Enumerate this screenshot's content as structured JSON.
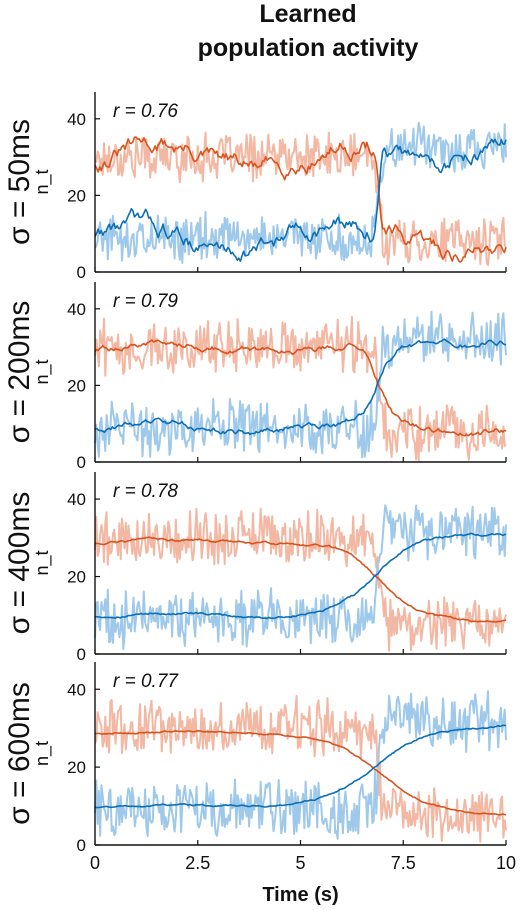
{
  "title_lines": [
    "Learned",
    "population activity"
  ],
  "colors": {
    "series_a": "#d9531e",
    "series_a_raw": "#f3b8a3",
    "series_b": "#0b6fb7",
    "series_b_raw": "#9fc9ea",
    "axis": "#111111"
  },
  "chart_data": [
    {
      "type": "line",
      "row_label": "σ = 50ms",
      "ylabel": "n_t",
      "annotation": "r = 0.76",
      "xlim": [
        0,
        10
      ],
      "ylim": [
        0,
        47
      ],
      "yticks": [
        0,
        20,
        40
      ],
      "xticks": [
        0,
        2.5,
        5,
        7.5,
        10
      ],
      "switch_time": 6.9,
      "series": [
        {
          "role": "smoothed",
          "color": "#d9531e",
          "before": 30,
          "after": 8,
          "width": 0.04,
          "noise": 4
        },
        {
          "role": "smoothed",
          "color": "#0b6fb7",
          "before": 9,
          "after": 32,
          "width": 0.04,
          "noise": 4
        },
        {
          "role": "raw",
          "color": "#f3b8a3",
          "before": 30,
          "after": 8,
          "noise": 5
        },
        {
          "role": "raw",
          "color": "#9fc9ea",
          "before": 9,
          "after": 32,
          "noise": 5
        }
      ]
    },
    {
      "type": "line",
      "row_label": "σ = 200ms",
      "ylabel": "n_t",
      "annotation": "r = 0.79",
      "xlim": [
        0,
        10
      ],
      "ylim": [
        0,
        47
      ],
      "yticks": [
        0,
        20,
        40
      ],
      "xticks": [
        0,
        2.5,
        5,
        7.5,
        10
      ],
      "switch_time": 6.9,
      "series": [
        {
          "role": "smoothed",
          "color": "#d9531e",
          "before": 30,
          "after": 9,
          "width": 0.2,
          "noise": 1.5
        },
        {
          "role": "smoothed",
          "color": "#0b6fb7",
          "before": 9,
          "after": 31,
          "width": 0.2,
          "noise": 1.5
        },
        {
          "role": "raw",
          "color": "#f3b8a3",
          "before": 30,
          "after": 8,
          "noise": 6
        },
        {
          "role": "raw",
          "color": "#9fc9ea",
          "before": 9,
          "after": 32,
          "noise": 6
        }
      ]
    },
    {
      "type": "line",
      "row_label": "σ = 400ms",
      "ylabel": "n_t",
      "annotation": "r = 0.78",
      "xlim": [
        0,
        10
      ],
      "ylim": [
        0,
        47
      ],
      "yticks": [
        0,
        20,
        40
      ],
      "xticks": [
        0,
        2.5,
        5,
        7.5,
        10
      ],
      "switch_time": 6.9,
      "series": [
        {
          "role": "smoothed",
          "color": "#d9531e",
          "before": 29,
          "after": 9,
          "width": 0.45,
          "noise": 0.6
        },
        {
          "role": "smoothed",
          "color": "#0b6fb7",
          "before": 10,
          "after": 31,
          "width": 0.45,
          "noise": 0.6
        },
        {
          "role": "raw",
          "color": "#f3b8a3",
          "before": 30,
          "after": 8,
          "noise": 6
        },
        {
          "role": "raw",
          "color": "#9fc9ea",
          "before": 9,
          "after": 32,
          "noise": 6
        }
      ]
    },
    {
      "type": "line",
      "row_label": "σ = 600ms",
      "ylabel": "n_t",
      "annotation": "r = 0.77",
      "xlim": [
        0,
        10
      ],
      "ylim": [
        0,
        47
      ],
      "yticks": [
        0,
        20,
        40
      ],
      "xticks": [
        0,
        2.5,
        5,
        7.5,
        10
      ],
      "xticklabels": [
        "0",
        "2.5",
        "5",
        "7.5",
        "10"
      ],
      "xlabel": "Time (s)",
      "switch_time": 6.9,
      "series": [
        {
          "role": "smoothed",
          "color": "#d9531e",
          "before": 29,
          "after": 8,
          "width": 0.65,
          "noise": 0.4
        },
        {
          "role": "smoothed",
          "color": "#0b6fb7",
          "before": 10,
          "after": 31,
          "width": 0.65,
          "noise": 0.4
        },
        {
          "role": "raw",
          "color": "#f3b8a3",
          "before": 30,
          "after": 8,
          "noise": 6
        },
        {
          "role": "raw",
          "color": "#9fc9ea",
          "before": 9,
          "after": 32,
          "noise": 6
        }
      ]
    }
  ]
}
